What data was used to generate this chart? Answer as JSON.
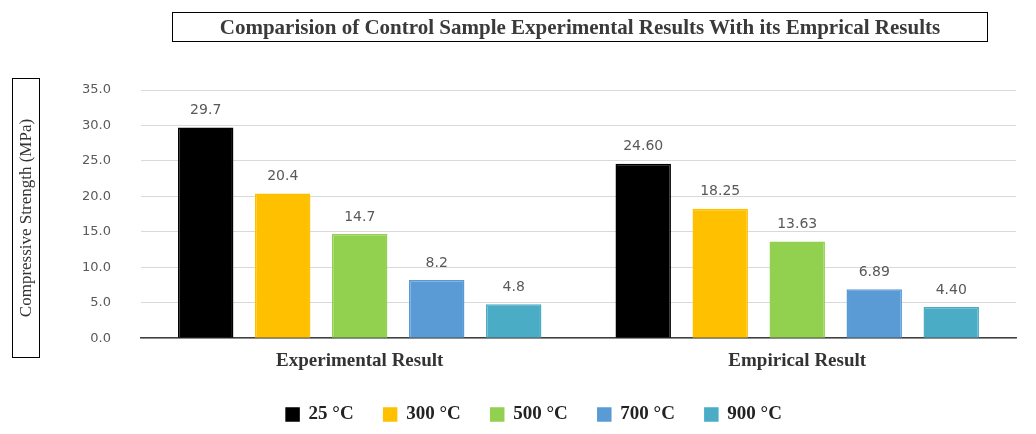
{
  "chart_data": {
    "type": "bar",
    "title": "Comparision of Control Sample Experimental Results With its Emprical Results",
    "ylabel": "Compressive Strength (MPa)",
    "categories": [
      "Experimental Result",
      "Empirical Result"
    ],
    "series": [
      {
        "name": "25 °C",
        "color": "#000000",
        "values": [
          29.7,
          24.6
        ],
        "value_labels": [
          "29.7",
          "24.60"
        ]
      },
      {
        "name": "300 °C",
        "color": "#ffc000",
        "values": [
          20.4,
          18.25
        ],
        "value_labels": [
          "20.4",
          "18.25"
        ]
      },
      {
        "name": "500 °C",
        "color": "#92d050",
        "values": [
          14.7,
          13.63
        ],
        "value_labels": [
          "14.7",
          "13.63"
        ]
      },
      {
        "name": "700 °C",
        "color": "#5b9bd5",
        "values": [
          8.2,
          6.89
        ],
        "value_labels": [
          "8.2",
          "6.89"
        ]
      },
      {
        "name": "900 °C",
        "color": "#4bacc6",
        "values": [
          4.8,
          4.4
        ],
        "value_labels": [
          "4.8",
          "4.40"
        ]
      }
    ],
    "ylim": [
      0,
      35
    ],
    "yticks": [
      {
        "value": 0,
        "label": "0.0"
      },
      {
        "value": 5,
        "label": "5.0"
      },
      {
        "value": 10,
        "label": "10.0"
      },
      {
        "value": 15,
        "label": "15.0"
      },
      {
        "value": 20,
        "label": "20.0"
      },
      {
        "value": 25,
        "label": "25.0"
      },
      {
        "value": 30,
        "label": "30.0"
      },
      {
        "value": 35,
        "label": "35.0"
      }
    ],
    "grid": "y",
    "legend": "bottom"
  }
}
